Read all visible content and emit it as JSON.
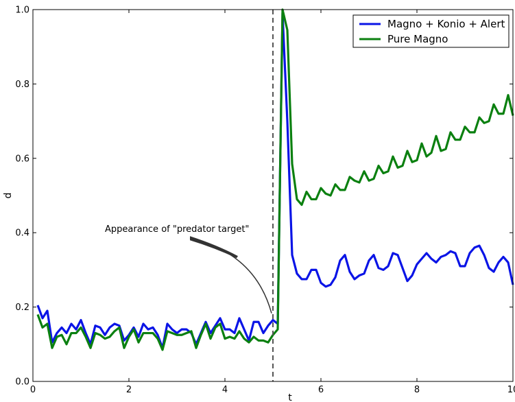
{
  "chart_data": {
    "type": "line",
    "xlabel": "t",
    "ylabel": "d",
    "xlim": [
      0,
      10
    ],
    "ylim": [
      0,
      1.0
    ],
    "xticks": [
      0,
      2,
      4,
      6,
      8,
      10
    ],
    "yticks": [
      0.0,
      0.2,
      0.4,
      0.6,
      0.8,
      1.0
    ],
    "xtick_labels": [
      "0",
      "2",
      "4",
      "6",
      "8",
      "10"
    ],
    "ytick_labels": [
      "0.0",
      "0.2",
      "0.4",
      "0.6",
      "0.8",
      "1.0"
    ],
    "grid": false,
    "legend_position": "top-right",
    "vline": {
      "x": 5.0,
      "style": "dashed",
      "color": "#555555"
    },
    "annotation": {
      "text": "Appearance of \"predator target\"",
      "text_x": 1.5,
      "text_y": 0.4,
      "arrow_to_x": 5.0,
      "arrow_to_y": 0.15
    },
    "series": [
      {
        "name": "Magno + Konio + Alert",
        "color": "#0a14e6",
        "x": [
          0.1,
          0.2,
          0.3,
          0.4,
          0.5,
          0.6,
          0.7,
          0.8,
          0.9,
          1.0,
          1.1,
          1.2,
          1.3,
          1.4,
          1.5,
          1.6,
          1.7,
          1.8,
          1.9,
          2.0,
          2.1,
          2.2,
          2.3,
          2.4,
          2.5,
          2.6,
          2.7,
          2.8,
          2.9,
          3.0,
          3.1,
          3.2,
          3.3,
          3.4,
          3.5,
          3.6,
          3.7,
          3.8,
          3.9,
          4.0,
          4.1,
          4.2,
          4.3,
          4.4,
          4.5,
          4.6,
          4.7,
          4.8,
          4.9,
          5.0,
          5.1,
          5.2,
          5.3,
          5.4,
          5.5,
          5.6,
          5.7,
          5.8,
          5.9,
          6.0,
          6.1,
          6.2,
          6.3,
          6.4,
          6.5,
          6.6,
          6.7,
          6.8,
          6.9,
          7.0,
          7.1,
          7.2,
          7.3,
          7.4,
          7.5,
          7.6,
          7.7,
          7.8,
          7.9,
          8.0,
          8.1,
          8.2,
          8.3,
          8.4,
          8.5,
          8.6,
          8.7,
          8.8,
          8.9,
          9.0,
          9.1,
          9.2,
          9.3,
          9.4,
          9.5,
          9.6,
          9.7,
          9.8,
          9.9,
          10.0
        ],
        "values": [
          0.205,
          0.17,
          0.19,
          0.105,
          0.13,
          0.145,
          0.13,
          0.155,
          0.14,
          0.165,
          0.13,
          0.1,
          0.15,
          0.145,
          0.125,
          0.145,
          0.155,
          0.15,
          0.11,
          0.125,
          0.145,
          0.12,
          0.155,
          0.14,
          0.145,
          0.125,
          0.09,
          0.155,
          0.14,
          0.13,
          0.14,
          0.14,
          0.13,
          0.1,
          0.13,
          0.16,
          0.13,
          0.15,
          0.17,
          0.14,
          0.14,
          0.13,
          0.17,
          0.14,
          0.11,
          0.16,
          0.16,
          0.13,
          0.15,
          0.165,
          0.155,
          0.99,
          0.7,
          0.34,
          0.29,
          0.275,
          0.275,
          0.3,
          0.3,
          0.265,
          0.255,
          0.26,
          0.28,
          0.325,
          0.34,
          0.295,
          0.275,
          0.285,
          0.29,
          0.325,
          0.34,
          0.305,
          0.3,
          0.31,
          0.345,
          0.34,
          0.305,
          0.27,
          0.285,
          0.315,
          0.33,
          0.345,
          0.33,
          0.32,
          0.335,
          0.34,
          0.35,
          0.345,
          0.31,
          0.31,
          0.345,
          0.36,
          0.365,
          0.34,
          0.305,
          0.295,
          0.32,
          0.335,
          0.32,
          0.26
        ]
      },
      {
        "name": "Pure Magno",
        "color": "#0b8010",
        "x": [
          0.1,
          0.2,
          0.3,
          0.4,
          0.5,
          0.6,
          0.7,
          0.8,
          0.9,
          1.0,
          1.1,
          1.2,
          1.3,
          1.4,
          1.5,
          1.6,
          1.7,
          1.8,
          1.9,
          2.0,
          2.1,
          2.2,
          2.3,
          2.4,
          2.5,
          2.6,
          2.7,
          2.8,
          2.9,
          3.0,
          3.1,
          3.2,
          3.3,
          3.4,
          3.5,
          3.6,
          3.7,
          3.8,
          3.9,
          4.0,
          4.1,
          4.2,
          4.3,
          4.4,
          4.5,
          4.6,
          4.7,
          4.8,
          4.9,
          5.0,
          5.1,
          5.2,
          5.3,
          5.4,
          5.5,
          5.6,
          5.7,
          5.8,
          5.9,
          6.0,
          6.1,
          6.2,
          6.3,
          6.4,
          6.5,
          6.6,
          6.7,
          6.8,
          6.9,
          7.0,
          7.1,
          7.2,
          7.3,
          7.4,
          7.5,
          7.6,
          7.7,
          7.8,
          7.9,
          8.0,
          8.1,
          8.2,
          8.3,
          8.4,
          8.5,
          8.6,
          8.7,
          8.8,
          8.9,
          9.0,
          9.1,
          9.2,
          9.3,
          9.4,
          9.5,
          9.6,
          9.7,
          9.8,
          9.9,
          10.0
        ],
        "values": [
          0.18,
          0.145,
          0.155,
          0.09,
          0.12,
          0.125,
          0.1,
          0.13,
          0.13,
          0.145,
          0.12,
          0.09,
          0.13,
          0.125,
          0.115,
          0.12,
          0.135,
          0.145,
          0.09,
          0.12,
          0.14,
          0.105,
          0.13,
          0.13,
          0.13,
          0.115,
          0.085,
          0.135,
          0.13,
          0.125,
          0.125,
          0.13,
          0.135,
          0.09,
          0.125,
          0.155,
          0.115,
          0.145,
          0.155,
          0.115,
          0.12,
          0.115,
          0.135,
          0.115,
          0.105,
          0.12,
          0.11,
          0.11,
          0.105,
          0.125,
          0.14,
          1.0,
          0.945,
          0.585,
          0.49,
          0.475,
          0.51,
          0.49,
          0.49,
          0.52,
          0.505,
          0.5,
          0.53,
          0.515,
          0.515,
          0.55,
          0.54,
          0.535,
          0.565,
          0.54,
          0.545,
          0.58,
          0.56,
          0.565,
          0.605,
          0.575,
          0.58,
          0.62,
          0.59,
          0.595,
          0.64,
          0.605,
          0.615,
          0.66,
          0.62,
          0.625,
          0.67,
          0.65,
          0.65,
          0.685,
          0.67,
          0.67,
          0.71,
          0.695,
          0.7,
          0.745,
          0.72,
          0.72,
          0.77,
          0.715
        ]
      }
    ]
  }
}
